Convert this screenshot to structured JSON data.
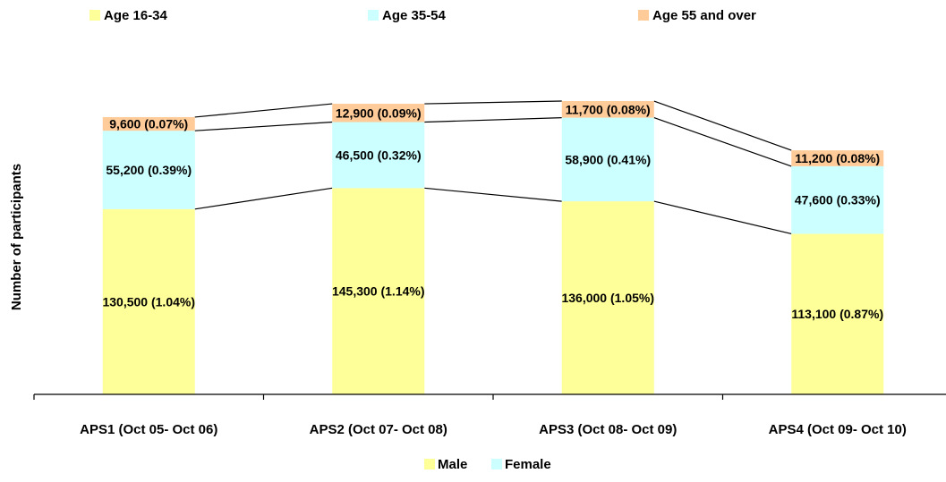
{
  "chart_data": {
    "type": "bar",
    "stacked": true,
    "categories": [
      "APS1 (Oct 05- Oct 06)",
      "APS2 (Oct 07- Oct 08)",
      "APS3 (Oct 08- Oct 09)",
      "APS4 (Oct 09- Oct 10)"
    ],
    "series": [
      {
        "name": "Age 16-34",
        "color": "#ffff99",
        "values": [
          130500,
          145300,
          136000,
          113100
        ],
        "labels": [
          "130,500 (1.04%)",
          "145,300 (1.14%)",
          "136,000 (1.05%)",
          "113,100 (0.87%)"
        ]
      },
      {
        "name": "Age 35-54",
        "color": "#ccffff",
        "values": [
          55200,
          46500,
          58900,
          47600
        ],
        "labels": [
          "55,200 (0.39%)",
          "46,500 (0.32%)",
          "58,900 (0.41%)",
          "47,600 (0.33%)"
        ]
      },
      {
        "name": "Age 55 and over",
        "color": "#ffcc99",
        "values": [
          9600,
          12900,
          11700,
          11200
        ],
        "labels": [
          "9,600 (0.07%)",
          "12,900 (0.09%)",
          "11,700 (0.08%)",
          "11,200 (0.08%)"
        ]
      }
    ],
    "ylabel": "Number of participants",
    "ylim": [
      0,
      240000
    ],
    "grid": false,
    "series_connector_lines": true,
    "legend_position": "top",
    "secondary_legend": [
      {
        "name": "Male",
        "color": "#ffff99"
      },
      {
        "name": "Female",
        "color": "#ccffff"
      }
    ],
    "secondary_legend_position": "bottom"
  }
}
